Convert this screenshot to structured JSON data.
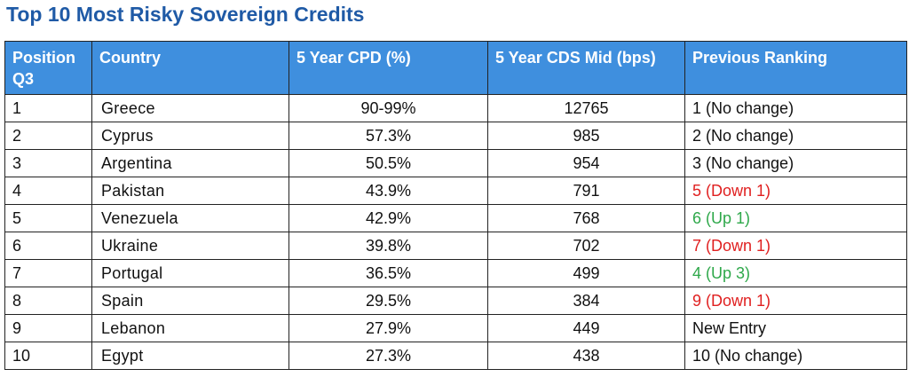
{
  "title": "Top 10 Most Risky Sovereign Credits",
  "colors": {
    "title": "#1f5aa6",
    "header_bg": "#3f8fde",
    "down": "#e02020",
    "up": "#2ea84a"
  },
  "columns": [
    "Position Q3",
    "Country",
    "5 Year CPD (%)",
    "5 Year CDS Mid (bps)",
    "Previous Ranking"
  ],
  "rows": [
    {
      "position": "1",
      "country": "Greece",
      "cpd": "90-99%",
      "cds": "12765",
      "previous": "1 (No change)",
      "trend": "neutral"
    },
    {
      "position": "2",
      "country": "Cyprus",
      "cpd": "57.3%",
      "cds": "985",
      "previous": "2 (No change)",
      "trend": "neutral"
    },
    {
      "position": "3",
      "country": "Argentina",
      "cpd": "50.5%",
      "cds": "954",
      "previous": "3 (No change)",
      "trend": "neutral"
    },
    {
      "position": "4",
      "country": "Pakistan",
      "cpd": "43.9%",
      "cds": "791",
      "previous": "5 (Down 1)",
      "trend": "down"
    },
    {
      "position": "5",
      "country": "Venezuela",
      "cpd": "42.9%",
      "cds": "768",
      "previous": "6 (Up 1)",
      "trend": "up"
    },
    {
      "position": "6",
      "country": "Ukraine",
      "cpd": "39.8%",
      "cds": "702",
      "previous": "7 (Down 1)",
      "trend": "down"
    },
    {
      "position": "7",
      "country": "Portugal",
      "cpd": "36.5%",
      "cds": "499",
      "previous": "4 (Up 3)",
      "trend": "up"
    },
    {
      "position": "8",
      "country": "Spain",
      "cpd": "29.5%",
      "cds": "384",
      "previous": "9 (Down 1)",
      "trend": "down"
    },
    {
      "position": "9",
      "country": "Lebanon",
      "cpd": "27.9%",
      "cds": "449",
      "previous": "New Entry",
      "trend": "neutral"
    },
    {
      "position": "10",
      "country": "Egypt",
      "cpd": "27.3%",
      "cds": "438",
      "previous": "10 (No change)",
      "trend": "neutral"
    }
  ]
}
